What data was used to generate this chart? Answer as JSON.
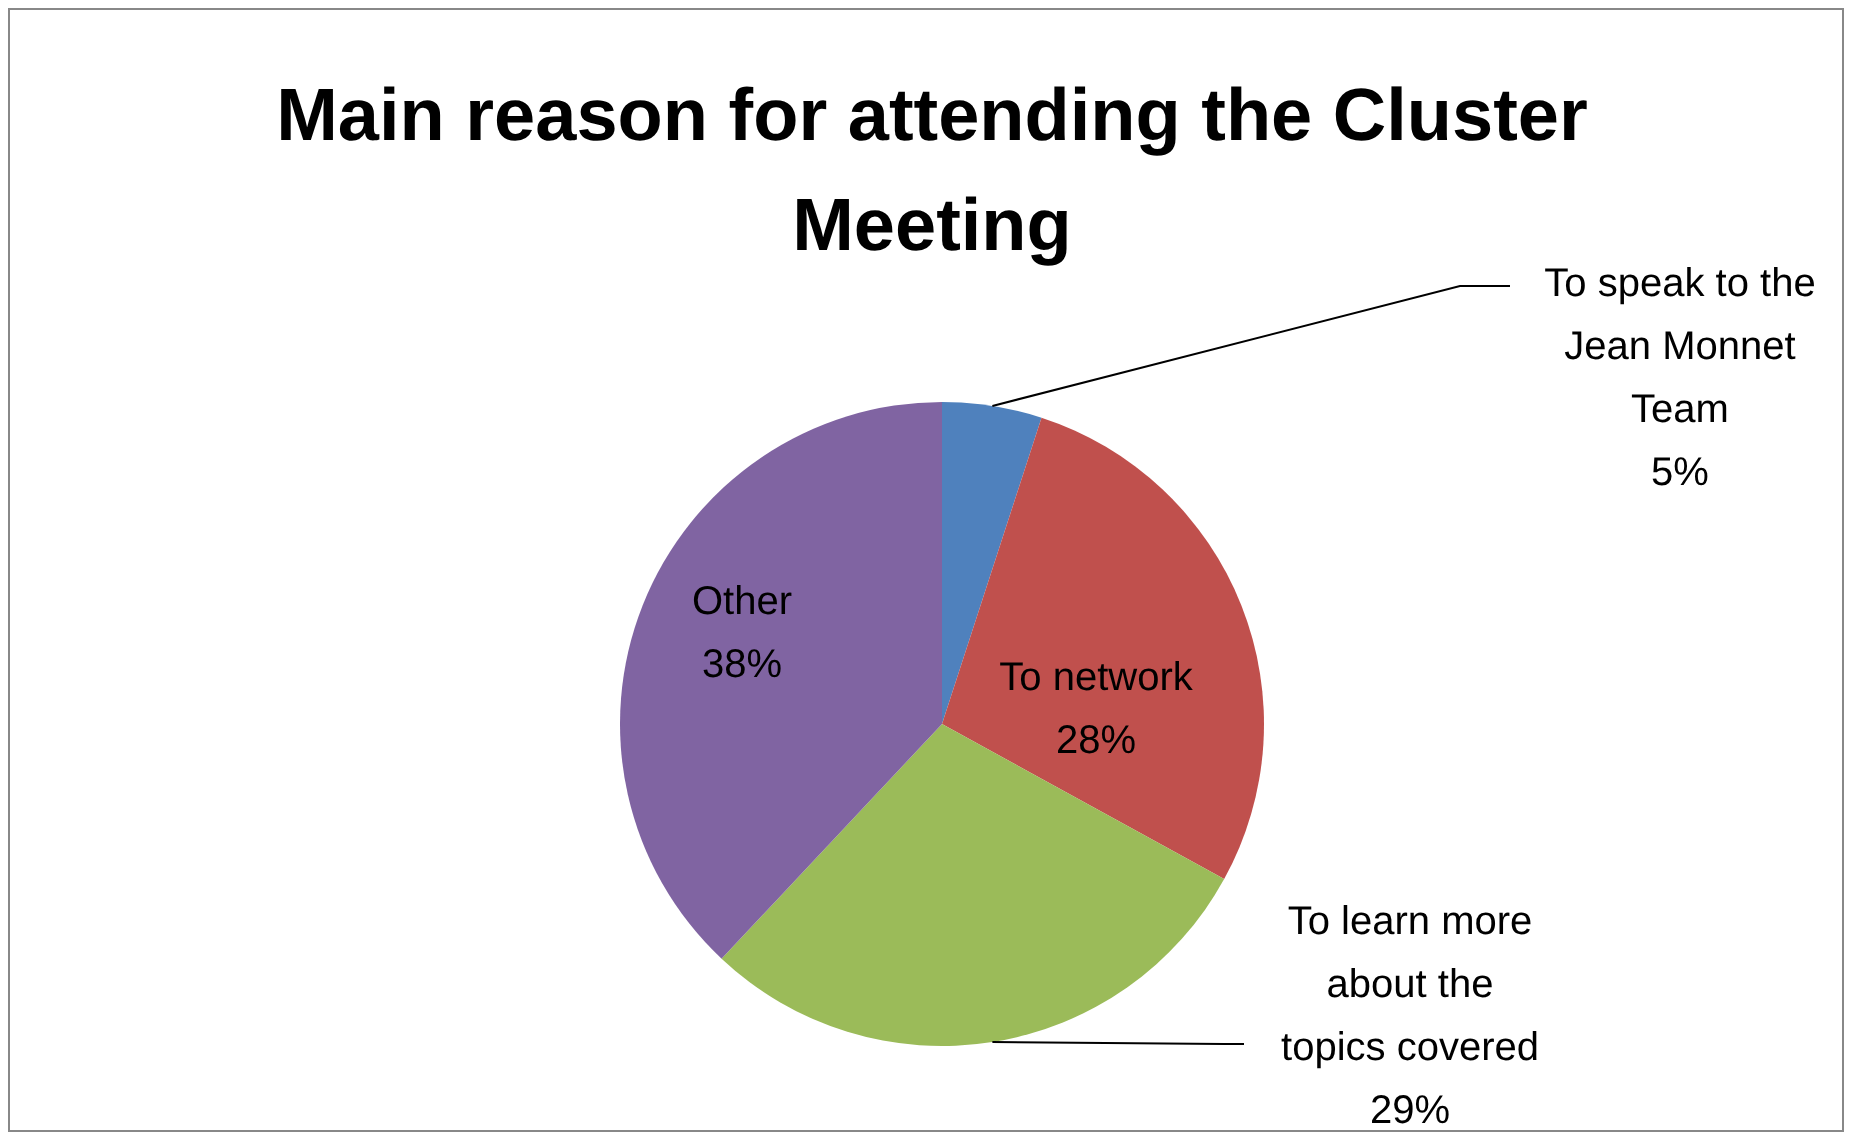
{
  "chart_data": {
    "type": "pie",
    "title": "Main reason for attending the Cluster Meeting",
    "categories": [
      "To speak to the Jean Monnet Team",
      "To network",
      "To learn more about the topics covered",
      "Other"
    ],
    "values": [
      5,
      28,
      29,
      38
    ],
    "colors": [
      "#4f81bd",
      "#c0504d",
      "#9bbb59",
      "#8064a2"
    ],
    "value_labels": [
      "5%",
      "28%",
      "29%",
      "38%"
    ],
    "legend": false
  }
}
